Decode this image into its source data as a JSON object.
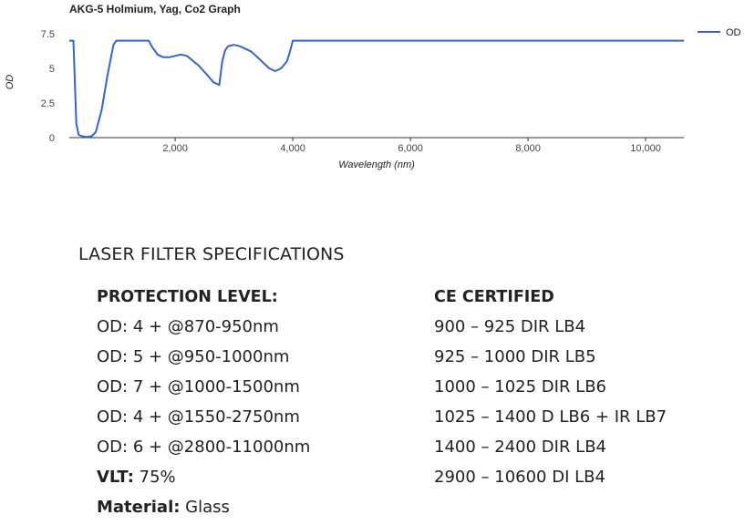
{
  "chart_data": {
    "type": "line",
    "title": "AKG-5 Holmium, Yag, Co2 Graph",
    "xlabel": "Wavelength (nm)",
    "ylabel": "OD",
    "xlim": [
      200,
      10650
    ],
    "ylim": [
      0,
      7.5
    ],
    "xticks": [
      2000,
      4000,
      6000,
      8000,
      10000
    ],
    "xtick_labels": [
      "2,000",
      "4,000",
      "6,000",
      "8,000",
      "10,000"
    ],
    "yticks": [
      0,
      2.5,
      5,
      7.5
    ],
    "ytick_labels": [
      "0",
      "2.5",
      "5",
      "7.5"
    ],
    "grid": false,
    "legend": "right",
    "series_color": "#3366cc",
    "series": [
      {
        "name": "OD",
        "x": [
          200,
          270,
          320,
          360,
          420,
          500,
          580,
          650,
          750,
          850,
          950,
          1000,
          1100,
          1300,
          1550,
          1600,
          1700,
          1800,
          1900,
          2000,
          2100,
          2200,
          2400,
          2550,
          2650,
          2700,
          2750,
          2800,
          2850,
          2900,
          3000,
          3100,
          3200,
          3300,
          3400,
          3500,
          3600,
          3700,
          3800,
          3900,
          3950,
          4000,
          4500,
          6000,
          8000,
          10000,
          10650
        ],
        "y": [
          7.0,
          7.0,
          1.0,
          0.2,
          0.1,
          0.05,
          0.1,
          0.4,
          2.0,
          4.5,
          6.7,
          7.0,
          7.0,
          7.0,
          7.0,
          6.6,
          6.0,
          5.8,
          5.8,
          5.9,
          6.0,
          5.9,
          5.2,
          4.5,
          4.0,
          3.9,
          3.8,
          5.5,
          6.3,
          6.6,
          6.7,
          6.6,
          6.4,
          6.2,
          5.8,
          5.4,
          5.0,
          4.8,
          5.0,
          5.5,
          6.2,
          7.0,
          7.0,
          7.0,
          7.0,
          7.0,
          7.0
        ]
      }
    ]
  },
  "specs": {
    "title": "LASER FILTER SPECIFICATIONS",
    "left_header": "PROTECTION LEVEL:",
    "left_rows": [
      "OD: 4 + @870-950nm",
      "OD: 5 + @950-1000nm",
      "OD: 7 + @1000-1500nm",
      "OD: 4 + @1550-2750nm",
      "OD: 6 + @2800-11000nm"
    ],
    "vlt_label": "VLT:",
    "vlt_value": " 75%",
    "material_label": "Material:",
    "material_value": " Glass",
    "right_header": "CE CERTIFIED",
    "right_rows": [
      "900 – 925 DIR LB4",
      "925 – 1000 DIR LB5",
      "1000 – 1025 DIR LB6",
      "1025 – 1400 D LB6 + IR LB7",
      "1400 – 2400 DIR LB4",
      "2900 – 10600 DI LB4"
    ]
  }
}
